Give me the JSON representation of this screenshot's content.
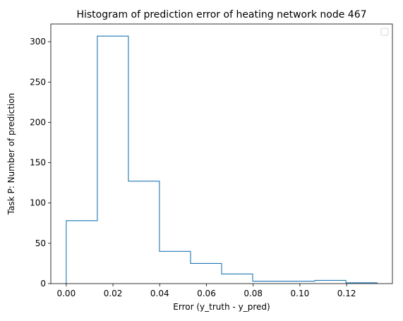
{
  "chart_data": {
    "type": "histogram",
    "title": "Histogram of prediction error of heating network node 467",
    "xlabel": "Error (y_truth - y_pred)",
    "ylabel": "Task P: Number of prediction",
    "xlim": [
      -0.0066,
      0.1396
    ],
    "ylim": [
      0,
      322
    ],
    "x_ticks": [
      0.0,
      0.02,
      0.04,
      0.06,
      0.08,
      0.1,
      0.12
    ],
    "x_tick_labels": [
      "0.00",
      "0.02",
      "0.04",
      "0.06",
      "0.08",
      "0.10",
      "0.12"
    ],
    "y_ticks": [
      0,
      50,
      100,
      150,
      200,
      250,
      300
    ],
    "y_tick_labels": [
      "0",
      "50",
      "100",
      "150",
      "200",
      "250",
      "300"
    ],
    "bin_edges": [
      0.0,
      0.0133,
      0.0266,
      0.0399,
      0.0532,
      0.0665,
      0.0798,
      0.0931,
      0.1064,
      0.1197,
      0.133
    ],
    "counts": [
      78,
      307,
      127,
      40,
      25,
      12,
      3,
      3,
      4,
      1
    ],
    "histtype": "step",
    "line_color": "#1f77b4",
    "grid": false,
    "legend": {
      "location": "upper right",
      "entries": []
    }
  }
}
